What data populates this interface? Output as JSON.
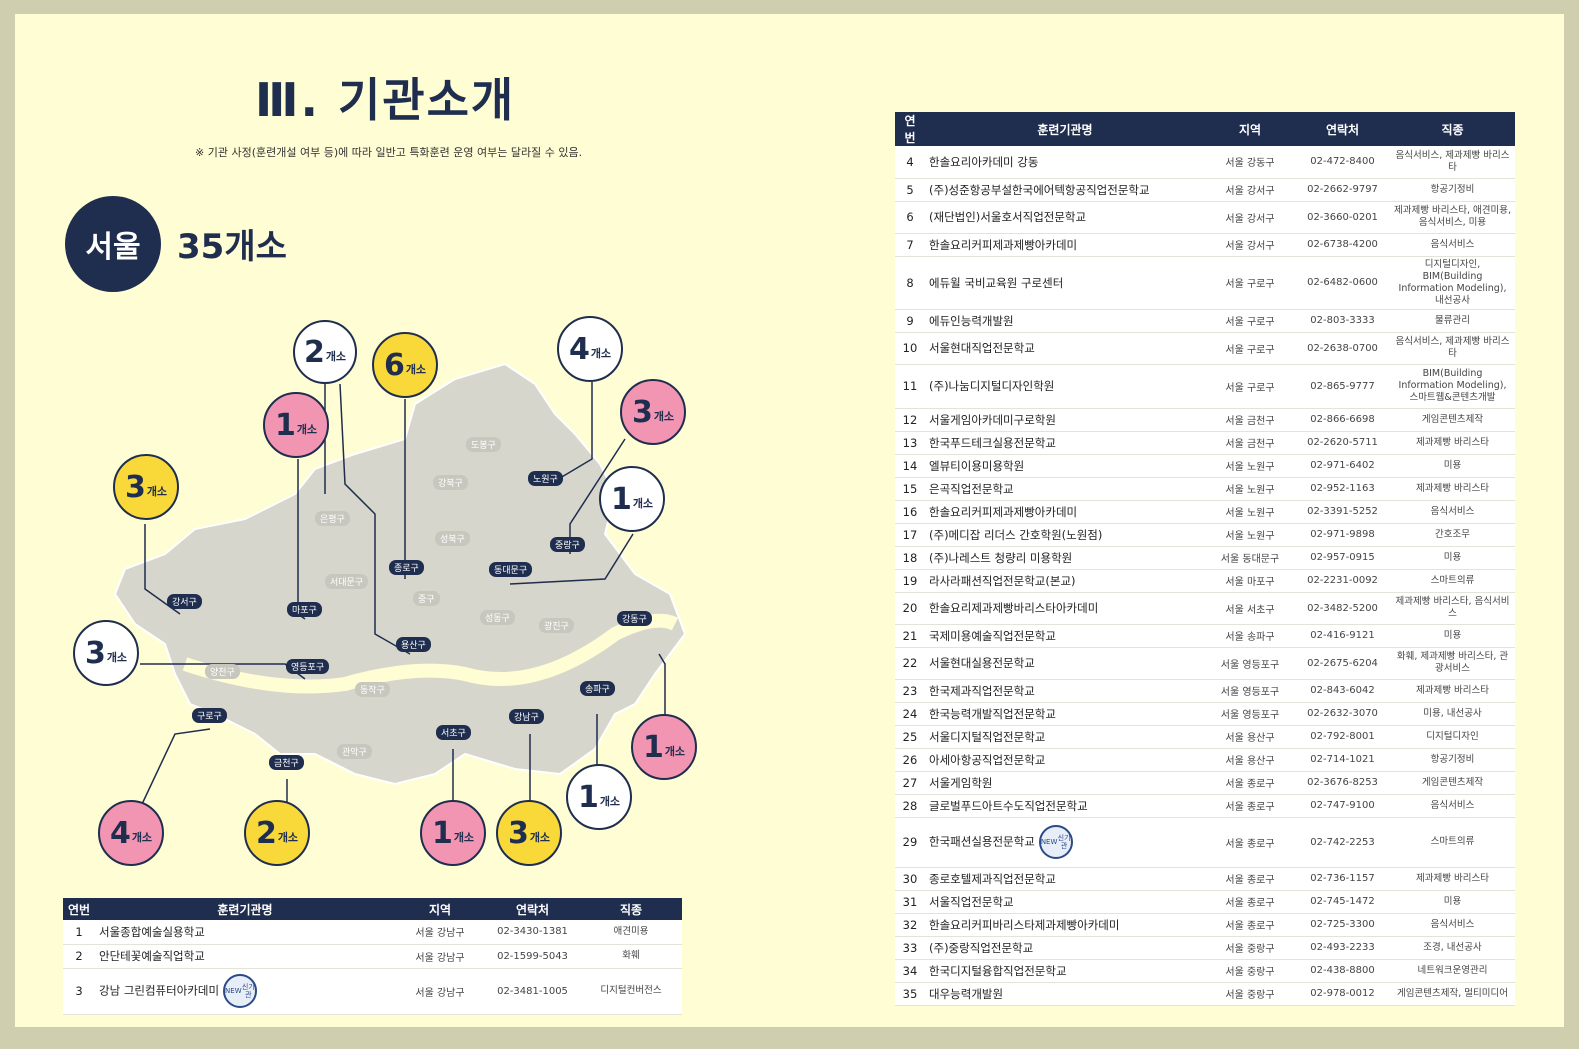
{
  "header": {
    "title": "Ⅲ. 기관소개",
    "notice": "※ 기관 사정(훈련개설 여부 등)에 따라 일반고 특화훈련 운영 여부는 달라질 수 있음."
  },
  "region": {
    "name": "서울",
    "count": "35개소"
  },
  "bubbles": [
    {
      "n": "2",
      "u": "개소"
    },
    {
      "n": "6",
      "u": "개소"
    },
    {
      "n": "4",
      "u": "개소"
    },
    {
      "n": "1",
      "u": "개소"
    },
    {
      "n": "3",
      "u": "개소"
    },
    {
      "n": "3",
      "u": "개소"
    },
    {
      "n": "1",
      "u": "개소"
    },
    {
      "n": "3",
      "u": "개소"
    },
    {
      "n": "1",
      "u": "개소"
    },
    {
      "n": "4",
      "u": "개소"
    },
    {
      "n": "2",
      "u": "개소"
    },
    {
      "n": "1",
      "u": "개소"
    },
    {
      "n": "3",
      "u": "개소"
    },
    {
      "n": "1",
      "u": "개소"
    }
  ],
  "districts_highlight": [
    "강서구",
    "마포구",
    "종로구",
    "동대문구",
    "노원구",
    "중랑구",
    "용산구",
    "영등포구",
    "강동구",
    "송파구",
    "강남구",
    "서초구",
    "구로구",
    "금천구"
  ],
  "districts_light": [
    "도봉구",
    "강북구",
    "은평구",
    "성북구",
    "서대문구",
    "중구",
    "성동구",
    "광진구",
    "양천구",
    "동작구",
    "관악구"
  ],
  "table_headers": {
    "num": "연번",
    "name": "훈련기관명",
    "region": "지역",
    "phone": "연락처",
    "job": "직종"
  },
  "new_badge": {
    "top": "NEW",
    "bottom": "신기관"
  },
  "table_left": [
    {
      "num": "1",
      "name": "서울종합예술실용학교",
      "region": "서울 강남구",
      "phone": "02-3430-1381",
      "job": "애견미용"
    },
    {
      "num": "2",
      "name": "안단테꽃예술직업학교",
      "region": "서울 강남구",
      "phone": "02-1599-5043",
      "job": "화훼"
    },
    {
      "num": "3",
      "name": "강남 그린컴퓨터아카데미",
      "region": "서울 강남구",
      "phone": "02-3481-1005",
      "job": "디지털컨버전스",
      "badge": true
    }
  ],
  "table_right": [
    {
      "num": "4",
      "name": "한솔요리아카데미 강동",
      "region": "서울 강동구",
      "phone": "02-472-8400",
      "job": "음식서비스, 제과제빵 바리스타"
    },
    {
      "num": "5",
      "name": "(주)성준항공부설한국에어텍항공직업전문학교",
      "region": "서울 강서구",
      "phone": "02-2662-9797",
      "job": "항공기정비"
    },
    {
      "num": "6",
      "name": "(재단법인)서울호서직업전문학교",
      "region": "서울 강서구",
      "phone": "02-3660-0201",
      "job": "제과제빵 바리스타, 애견미용, 음식서비스, 미용"
    },
    {
      "num": "7",
      "name": "한솔요리커피제과제빵아카데미",
      "region": "서울 강서구",
      "phone": "02-6738-4200",
      "job": "음식서비스"
    },
    {
      "num": "8",
      "name": "에듀윌 국비교육원 구로센터",
      "region": "서울 구로구",
      "phone": "02-6482-0600",
      "job": "디지털디자인, BIM(Building Information Modeling), 내선공사"
    },
    {
      "num": "9",
      "name": "에듀인능력개발원",
      "region": "서울 구로구",
      "phone": "02-803-3333",
      "job": "물류관리"
    },
    {
      "num": "10",
      "name": "서울현대직업전문학교",
      "region": "서울 구로구",
      "phone": "02-2638-0700",
      "job": "음식서비스, 제과제빵 바리스타"
    },
    {
      "num": "11",
      "name": "(주)나눔디지털디자인학원",
      "region": "서울 구로구",
      "phone": "02-865-9777",
      "job": "BIM(Building Information Modeling), 스마트웹&콘텐츠개발"
    },
    {
      "num": "12",
      "name": "서울게임아카데미구로학원",
      "region": "서울 금천구",
      "phone": "02-866-6698",
      "job": "게임콘텐츠제작"
    },
    {
      "num": "13",
      "name": "한국푸드테크실용전문학교",
      "region": "서울 금천구",
      "phone": "02-2620-5711",
      "job": "제과제빵 바리스타"
    },
    {
      "num": "14",
      "name": "엘뷰티이용미용학원",
      "region": "서울 노원구",
      "phone": "02-971-6402",
      "job": "미용"
    },
    {
      "num": "15",
      "name": "은곡직업전문학교",
      "region": "서울 노원구",
      "phone": "02-952-1163",
      "job": "제과제빵 바리스타"
    },
    {
      "num": "16",
      "name": "한솔요리커피제과제빵아카데미",
      "region": "서울 노원구",
      "phone": "02-3391-5252",
      "job": "음식서비스"
    },
    {
      "num": "17",
      "name": "(주)메디잡 리더스 간호학원(노원점)",
      "region": "서울 노원구",
      "phone": "02-971-9898",
      "job": "간호조무"
    },
    {
      "num": "18",
      "name": "(주)나레스트 청량리 미용학원",
      "region": "서울 동대문구",
      "phone": "02-957-0915",
      "job": "미용"
    },
    {
      "num": "19",
      "name": "라사라패션직업전문학교(본교)",
      "region": "서울 마포구",
      "phone": "02-2231-0092",
      "job": "스마트의류"
    },
    {
      "num": "20",
      "name": "한솔요리제과제빵바리스타아카데미",
      "region": "서울 서초구",
      "phone": "02-3482-5200",
      "job": "제과제빵 바리스타, 음식서비스"
    },
    {
      "num": "21",
      "name": "국제미용예술직업전문학교",
      "region": "서울 송파구",
      "phone": "02-416-9121",
      "job": "미용"
    },
    {
      "num": "22",
      "name": "서울현대실용전문학교",
      "region": "서울 영등포구",
      "phone": "02-2675-6204",
      "job": "화훼, 제과제빵 바리스타, 관광서비스"
    },
    {
      "num": "23",
      "name": "한국제과직업전문학교",
      "region": "서울 영등포구",
      "phone": "02-843-6042",
      "job": "제과제빵 바리스타"
    },
    {
      "num": "24",
      "name": "한국능력개발직업전문학교",
      "region": "서울 영등포구",
      "phone": "02-2632-3070",
      "job": "미용, 내선공사"
    },
    {
      "num": "25",
      "name": "서울디지털직업전문학교",
      "region": "서울 용산구",
      "phone": "02-792-8001",
      "job": "디지털디자인"
    },
    {
      "num": "26",
      "name": "아세아항공직업전문학교",
      "region": "서울 용산구",
      "phone": "02-714-1021",
      "job": "항공기정비"
    },
    {
      "num": "27",
      "name": "서울게임학원",
      "region": "서울 종로구",
      "phone": "02-3676-8253",
      "job": "게임콘텐츠제작"
    },
    {
      "num": "28",
      "name": "글로벌푸드아트수도직업전문학교",
      "region": "서울 종로구",
      "phone": "02-747-9100",
      "job": "음식서비스"
    },
    {
      "num": "29",
      "name": "한국패션실용전문학교",
      "region": "서울 종로구",
      "phone": "02-742-2253",
      "job": "스마트의류",
      "badge": true
    },
    {
      "num": "30",
      "name": "종로호텔제과직업전문학교",
      "region": "서울 종로구",
      "phone": "02-736-1157",
      "job": "제과제빵 바리스타"
    },
    {
      "num": "31",
      "name": "서울직업전문학교",
      "region": "서울 종로구",
      "phone": "02-745-1472",
      "job": "미용"
    },
    {
      "num": "32",
      "name": "한솔요리커피바리스타제과제빵아카데미",
      "region": "서울 종로구",
      "phone": "02-725-3300",
      "job": "음식서비스"
    },
    {
      "num": "33",
      "name": "(주)중랑직업전문학교",
      "region": "서울 중랑구",
      "phone": "02-493-2233",
      "job": "조경, 내선공사"
    },
    {
      "num": "34",
      "name": "한국디지털융합직업전문학교",
      "region": "서울 중랑구",
      "phone": "02-438-8800",
      "job": "네트워크운영관리"
    },
    {
      "num": "35",
      "name": "대우능력개발원",
      "region": "서울 중랑구",
      "phone": "02-978-0012",
      "job": "게임콘텐츠제작, 멀티미디어"
    }
  ]
}
